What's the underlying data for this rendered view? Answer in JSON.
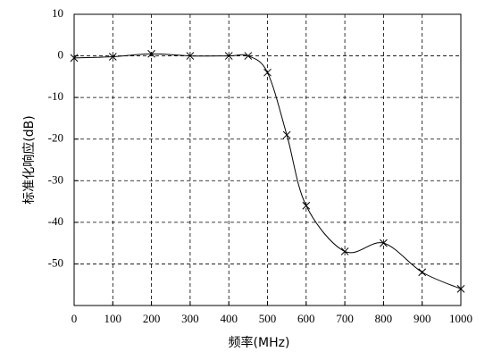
{
  "chart_data": {
    "type": "line",
    "x": [
      0,
      100,
      200,
      300,
      400,
      450,
      500,
      550,
      600,
      700,
      800,
      900,
      1000
    ],
    "values": [
      -0.5,
      -0.2,
      0.5,
      0,
      0,
      0,
      -4,
      -19,
      -36,
      -47,
      -45,
      -52,
      -56
    ],
    "color": "#000000",
    "xlabel": "频率(MHz)",
    "ylabel": "标准化响应(dB)",
    "xlim": [
      0,
      1000
    ],
    "xticks": [
      0,
      100,
      200,
      300,
      400,
      500,
      600,
      700,
      800,
      900,
      1000
    ],
    "ylim": [
      -60,
      10
    ],
    "yticks": [
      10,
      0,
      -10,
      -20,
      -30,
      -40,
      -50
    ],
    "grid": true
  }
}
